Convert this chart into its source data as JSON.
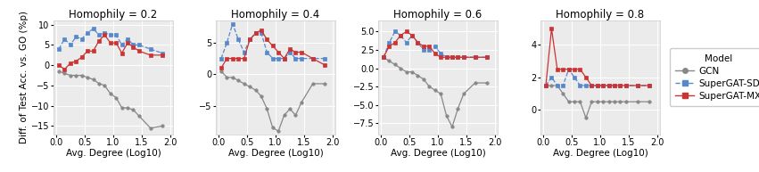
{
  "subplots": [
    {
      "title": "Homophily = 0.2",
      "ylim": [
        -17,
        11
      ],
      "yticks": [
        -15,
        -10,
        -5,
        0,
        5,
        10
      ],
      "show_yticks": true,
      "gcn": [
        -1.5,
        -2.0,
        -2.5,
        -2.5,
        -2.5,
        -3.0,
        -3.5,
        -4.5,
        -5.0,
        -7.0,
        -8.0,
        -10.5,
        -10.5,
        -11.0,
        -12.5,
        -15.5,
        -15.0
      ],
      "supgat_sd": [
        4.0,
        6.5,
        5.0,
        7.0,
        6.5,
        8.0,
        9.0,
        7.5,
        8.0,
        7.5,
        7.5,
        5.0,
        6.5,
        5.0,
        5.0,
        4.0,
        3.0
      ],
      "supgat_mx": [
        0.0,
        -1.0,
        0.5,
        1.0,
        2.0,
        3.5,
        3.5,
        6.0,
        7.5,
        5.5,
        5.5,
        3.0,
        5.5,
        4.5,
        3.5,
        2.5,
        2.5
      ]
    },
    {
      "title": "Homophily = 0.4",
      "ylim": [
        -9.5,
        8.5
      ],
      "yticks": [
        -7.5,
        -5.0,
        -2.5,
        0.0,
        2.5,
        5.0,
        7.5
      ],
      "show_yticks": false,
      "gcn": [
        0.5,
        -0.5,
        -0.5,
        -1.0,
        -1.5,
        -2.0,
        -2.5,
        -3.5,
        -5.5,
        -8.5,
        -9.0,
        -6.5,
        -5.5,
        -6.5,
        -4.5,
        -1.5,
        -1.5
      ],
      "supgat_sd": [
        2.5,
        5.0,
        8.0,
        5.5,
        3.5,
        5.5,
        6.5,
        6.5,
        3.5,
        2.5,
        2.5,
        2.5,
        3.5,
        2.5,
        2.5,
        2.5,
        2.5
      ],
      "supgat_mx": [
        1.0,
        2.5,
        2.5,
        2.5,
        2.5,
        5.5,
        6.5,
        7.0,
        5.5,
        4.5,
        3.5,
        2.5,
        4.0,
        3.5,
        3.5,
        2.5,
        1.5
      ]
    },
    {
      "title": "Homophily = 0.6",
      "ylim": [
        -9,
        6.5
      ],
      "yticks": [
        -7.5,
        -5.0,
        -2.5,
        0.0,
        2.5,
        5.0
      ],
      "show_yticks": true,
      "gcn": [
        1.5,
        1.0,
        0.5,
        0.0,
        -0.5,
        -0.5,
        -1.0,
        -1.5,
        -2.5,
        -3.0,
        -3.5,
        -6.5,
        -8.0,
        -5.5,
        -3.5,
        -2.0,
        -2.0
      ],
      "supgat_sd": [
        1.5,
        3.5,
        5.0,
        4.5,
        3.5,
        4.5,
        3.5,
        2.5,
        2.5,
        3.0,
        2.0,
        1.5,
        1.5,
        1.5,
        1.5,
        1.5,
        1.5
      ],
      "supgat_mx": [
        1.5,
        3.0,
        3.5,
        4.5,
        5.0,
        4.5,
        3.5,
        3.0,
        3.0,
        2.0,
        1.5,
        1.5,
        1.5,
        1.5,
        1.5,
        1.5,
        1.5
      ]
    },
    {
      "title": "Homophily = 0.8",
      "ylim": [
        -1.5,
        5.5
      ],
      "yticks": [
        0.0,
        1.0,
        2.0,
        3.0,
        4.0,
        5.0
      ],
      "show_yticks": false,
      "gcn": [
        1.5,
        1.5,
        1.5,
        1.0,
        0.5,
        0.5,
        0.5,
        -0.5,
        0.5,
        0.5,
        0.5,
        0.5,
        0.5,
        0.5,
        0.5,
        0.5,
        0.5
      ],
      "supgat_sd": [
        1.5,
        2.0,
        1.5,
        1.5,
        2.5,
        2.0,
        1.5,
        1.5,
        1.5,
        1.5,
        1.5,
        1.5,
        1.5,
        1.5,
        1.5,
        1.5,
        1.5
      ],
      "supgat_mx": [
        1.5,
        5.0,
        2.5,
        2.5,
        2.5,
        2.5,
        2.5,
        2.0,
        1.5,
        1.5,
        1.5,
        1.5,
        1.5,
        1.5,
        1.5,
        1.5,
        1.5
      ]
    }
  ],
  "x_values": [
    0.05,
    0.15,
    0.25,
    0.35,
    0.45,
    0.55,
    0.65,
    0.75,
    0.85,
    0.95,
    1.05,
    1.15,
    1.25,
    1.35,
    1.45,
    1.65,
    1.85
  ],
  "gcn_color": "#888888",
  "sd_color": "#5588CC",
  "mx_color": "#CC3333",
  "ylabel": "Diff. of Test Acc. vs. GO (%p)",
  "xlabel": "Avg. Degree (Log10)",
  "bg_color": "#ebebeb",
  "legend_labels": [
    "GCN",
    "SuperGAT-SD",
    "SuperGAT-MX"
  ],
  "title_fontsize": 8.5,
  "axis_fontsize": 7.5,
  "tick_fontsize": 7.0
}
